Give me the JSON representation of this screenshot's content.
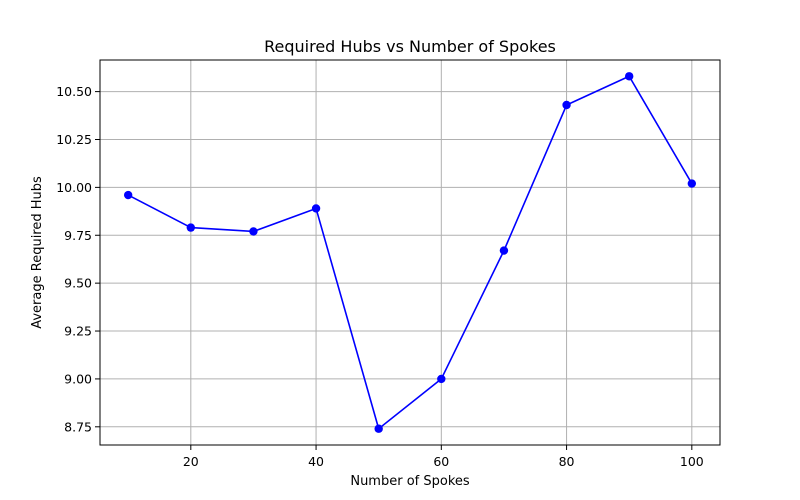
{
  "chart_data": {
    "type": "line",
    "title": "Required Hubs vs Number of Spokes",
    "xlabel": "Number of Spokes",
    "ylabel": "Average Required Hubs",
    "xlim": [
      5.5,
      104.5
    ],
    "ylim": [
      8.655,
      10.665
    ],
    "grid": true,
    "x_ticks": [
      20,
      40,
      60,
      80,
      100
    ],
    "y_ticks": [
      8.75,
      9.0,
      9.25,
      9.5,
      9.75,
      10.0,
      10.25,
      10.5
    ],
    "x_tick_labels": [
      "20",
      "40",
      "60",
      "80",
      "100"
    ],
    "y_tick_labels": [
      "8.75",
      "9.00",
      "9.25",
      "9.50",
      "9.75",
      "10.00",
      "10.25",
      "10.50"
    ],
    "series": [
      {
        "color": "#0000ff",
        "marker": "circle",
        "x": [
          10,
          20,
          30,
          40,
          50,
          60,
          70,
          80,
          90,
          100
        ],
        "y": [
          9.96,
          9.79,
          9.77,
          9.89,
          8.74,
          9.0,
          9.67,
          10.43,
          10.58,
          10.02
        ]
      }
    ]
  }
}
